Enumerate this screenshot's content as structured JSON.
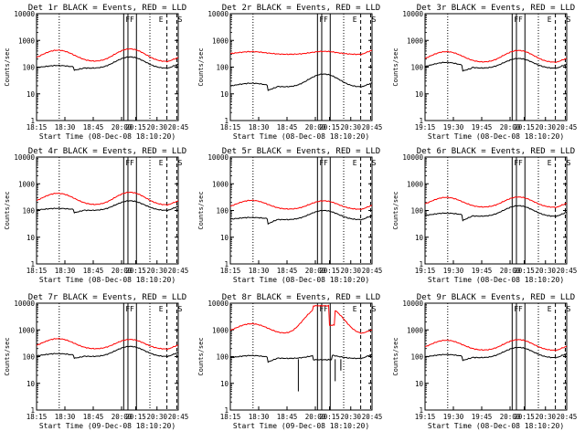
{
  "figure": {
    "background": "#ffffff",
    "axis_color": "#000000",
    "events_color": "#000000",
    "lld_color": "#ff0000"
  },
  "chart_data": [
    {
      "type": "line",
      "title": "Det 1r BLACK = Events, RED = LLD",
      "xlabel": "Start Time (08-Dec-08 18:10:20)",
      "ylabel": "Counts/sec",
      "x_ticks": [
        "18:15",
        "18:30",
        "18:45",
        "20:00",
        "20:15",
        "20:30",
        "20:45"
      ],
      "y_ticks": [
        "1",
        "10",
        "100",
        "1000",
        "10000"
      ],
      "ylim": [
        1,
        10000
      ],
      "y_scale": "log",
      "flags": [
        "F",
        "F",
        "E",
        "S"
      ],
      "series": [
        {
          "name": "Events",
          "color": "#000000",
          "base": 90,
          "peak1": 115,
          "peak2": 240,
          "step_low": 75
        },
        {
          "name": "LLD",
          "color": "#ff0000",
          "base": 160,
          "peak1": 430,
          "peak2": 480
        }
      ]
    },
    {
      "type": "line",
      "title": "Det 2r BLACK = Events, RED = LLD",
      "xlabel": "Start Time (08-Dec-08 18:10:20)",
      "ylabel": "Counts/sec",
      "x_ticks": [
        "18:15",
        "18:30",
        "18:45",
        "20:00",
        "20:15",
        "20:30",
        "20:45"
      ],
      "y_ticks": [
        "1",
        "10",
        "100",
        "1000",
        "10000"
      ],
      "ylim": [
        1,
        10000
      ],
      "y_scale": "log",
      "flags": [
        "F",
        "F",
        "E",
        "S"
      ],
      "series": [
        {
          "name": "Events",
          "color": "#000000",
          "base": 18,
          "peak1": 25,
          "peak2": 55,
          "step_low": 13
        },
        {
          "name": "LLD",
          "color": "#ff0000",
          "base": 300,
          "peak1": 380,
          "peak2": 390
        }
      ]
    },
    {
      "type": "line",
      "title": "Det 3r BLACK = Events, RED = LLD",
      "xlabel": "Start Time (08-Dec-08 18:10:20)",
      "ylabel": "Counts/sec",
      "x_ticks": [
        "19:15",
        "19:30",
        "19:45",
        "20:00",
        "20:15",
        "20:30",
        "20:45"
      ],
      "y_ticks": [
        "1",
        "10",
        "100",
        "1000",
        "10000"
      ],
      "ylim": [
        1,
        10000
      ],
      "y_scale": "log",
      "flags": [
        "F",
        "F",
        "E",
        "S"
      ],
      "series": [
        {
          "name": "Events",
          "color": "#000000",
          "base": 90,
          "peak1": 150,
          "peak2": 210,
          "step_low": 70
        },
        {
          "name": "LLD",
          "color": "#ff0000",
          "base": 150,
          "peak1": 380,
          "peak2": 420
        }
      ]
    },
    {
      "type": "line",
      "title": "Det 4r BLACK = Events, RED = LLD",
      "xlabel": "Start Time (08-Dec-08 18:10:20)",
      "ylabel": "Counts/sec",
      "x_ticks": [
        "18:15",
        "18:30",
        "18:45",
        "20:00",
        "20:15",
        "20:30",
        "20:45"
      ],
      "y_ticks": [
        "1",
        "10",
        "100",
        "1000",
        "10000"
      ],
      "ylim": [
        1,
        10000
      ],
      "y_scale": "log",
      "flags": [
        "F",
        "F",
        "E",
        "S"
      ],
      "series": [
        {
          "name": "Events",
          "color": "#000000",
          "base": 100,
          "peak1": 120,
          "peak2": 230,
          "step_low": 80
        },
        {
          "name": "LLD",
          "color": "#ff0000",
          "base": 160,
          "peak1": 440,
          "peak2": 480
        }
      ]
    },
    {
      "type": "line",
      "title": "Det 5r BLACK = Events, RED = LLD",
      "xlabel": "Start Time (08-Dec-08 18:10:20)",
      "ylabel": "Counts/sec",
      "x_ticks": [
        "18:15",
        "18:30",
        "18:45",
        "20:00",
        "20:15",
        "20:30",
        "20:45"
      ],
      "y_ticks": [
        "1",
        "10",
        "100",
        "1000",
        "10000"
      ],
      "ylim": [
        1,
        10000
      ],
      "y_scale": "log",
      "flags": [
        "F",
        "F",
        "E",
        "S"
      ],
      "series": [
        {
          "name": "Events",
          "color": "#000000",
          "base": 45,
          "peak1": 55,
          "peak2": 100,
          "step_low": 30
        },
        {
          "name": "LLD",
          "color": "#ff0000",
          "base": 110,
          "peak1": 240,
          "peak2": 230
        }
      ]
    },
    {
      "type": "line",
      "title": "Det 6r BLACK = Events, RED = LLD",
      "xlabel": "Start Time (08-Dec-08 18:10:20)",
      "ylabel": "Counts/sec",
      "x_ticks": [
        "19:15",
        "19:30",
        "19:45",
        "20:00",
        "20:15",
        "20:30",
        "20:45"
      ],
      "y_ticks": [
        "1",
        "10",
        "100",
        "1000",
        "10000"
      ],
      "ylim": [
        1,
        10000
      ],
      "y_scale": "log",
      "flags": [
        "F",
        "F",
        "E",
        "S"
      ],
      "series": [
        {
          "name": "Events",
          "color": "#000000",
          "base": 60,
          "peak1": 80,
          "peak2": 150,
          "step_low": 40
        },
        {
          "name": "LLD",
          "color": "#ff0000",
          "base": 130,
          "peak1": 310,
          "peak2": 320
        }
      ]
    },
    {
      "type": "line",
      "title": "Det 7r BLACK = Events, RED = LLD",
      "xlabel": "Start Time (09-Dec-08 18:10:20)",
      "ylabel": "Counts/sec",
      "x_ticks": [
        "18:15",
        "18:30",
        "18:45",
        "20:00",
        "20:15",
        "20:30",
        "20:45"
      ],
      "y_ticks": [
        "1",
        "10",
        "100",
        "1000",
        "10000"
      ],
      "ylim": [
        1,
        10000
      ],
      "y_scale": "log",
      "flags": [
        "F",
        "F",
        "E",
        "S"
      ],
      "series": [
        {
          "name": "Events",
          "color": "#000000",
          "base": 100,
          "peak1": 130,
          "peak2": 240,
          "step_low": 85
        },
        {
          "name": "LLD",
          "color": "#ff0000",
          "base": 190,
          "peak1": 470,
          "peak2": 440
        }
      ]
    },
    {
      "type": "line",
      "title": "Det 8r BLACK = Events, RED = LLD",
      "xlabel": "Start Time (09-Dec-08 18:10:20)",
      "ylabel": "Counts/sec",
      "x_ticks": [
        "18:15",
        "18:30",
        "18:45",
        "20:00",
        "20:15",
        "20:30",
        "20:45"
      ],
      "y_ticks": [
        "1",
        "10",
        "100",
        "1000",
        "10000"
      ],
      "ylim": [
        1,
        10000
      ],
      "y_scale": "log",
      "flags": [
        "F",
        "F",
        "E",
        "S"
      ],
      "special": "det8",
      "series": [
        {
          "name": "Events",
          "color": "#000000",
          "base": 85,
          "peak1": 110,
          "peak2": 120,
          "step_low": 60
        },
        {
          "name": "LLD",
          "color": "#ff0000",
          "base": 700,
          "peak1": 1700,
          "peak2": 8000
        }
      ]
    },
    {
      "type": "line",
      "title": "Det 9r BLACK = Events, RED = LLD",
      "xlabel": "Start Time (08-Dec-08 18:10:20)",
      "ylabel": "Counts/sec",
      "x_ticks": [
        "19:15",
        "19:30",
        "19:45",
        "20:00",
        "20:15",
        "20:30",
        "20:45"
      ],
      "y_ticks": [
        "1",
        "10",
        "100",
        "1000",
        "10000"
      ],
      "ylim": [
        1,
        10000
      ],
      "y_scale": "log",
      "flags": [
        "F",
        "F",
        "E",
        "S"
      ],
      "series": [
        {
          "name": "Events",
          "color": "#000000",
          "base": 90,
          "peak1": 120,
          "peak2": 220,
          "step_low": 70
        },
        {
          "name": "LLD",
          "color": "#ff0000",
          "base": 170,
          "peak1": 410,
          "peak2": 430
        }
      ]
    }
  ]
}
